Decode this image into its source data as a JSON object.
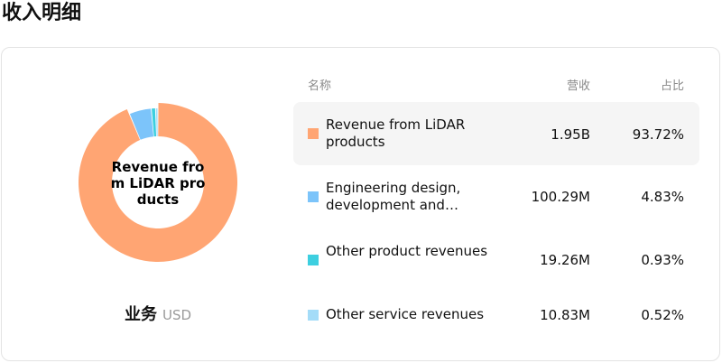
{
  "page": {
    "title": "收入明细"
  },
  "chart": {
    "center_label": "Revenue from LiDAR products",
    "caption": "业务",
    "unit": "USD"
  },
  "table": {
    "headers": {
      "name": "名称",
      "revenue": "营收",
      "share": "占比"
    },
    "rows": [
      {
        "name": "Revenue from LiDAR products",
        "revenue": "1.95B",
        "share": "93.72%",
        "color": "#FFA573",
        "selected": true
      },
      {
        "name": "Engineering design, development and validation services",
        "revenue": "100.29M",
        "share": "4.83%",
        "color": "#7CC4FA",
        "selected": false
      },
      {
        "name": "Other product revenues",
        "revenue": "19.26M",
        "share": "0.93%",
        "color": "#3DCFE0",
        "selected": false
      },
      {
        "name": "Other service revenues",
        "revenue": "10.83M",
        "share": "0.52%",
        "color": "#A4DCF8",
        "selected": false
      }
    ]
  },
  "chart_data": {
    "type": "pie",
    "categories": [
      "Revenue from LiDAR products",
      "Engineering design, development and validation services",
      "Other product revenues",
      "Other service revenues"
    ],
    "values": [
      93.72,
      4.83,
      0.93,
      0.52
    ],
    "colors": [
      "#FFA573",
      "#7CC4FA",
      "#3DCFE0",
      "#A4DCF8"
    ],
    "highlighted": "Revenue from LiDAR products"
  }
}
